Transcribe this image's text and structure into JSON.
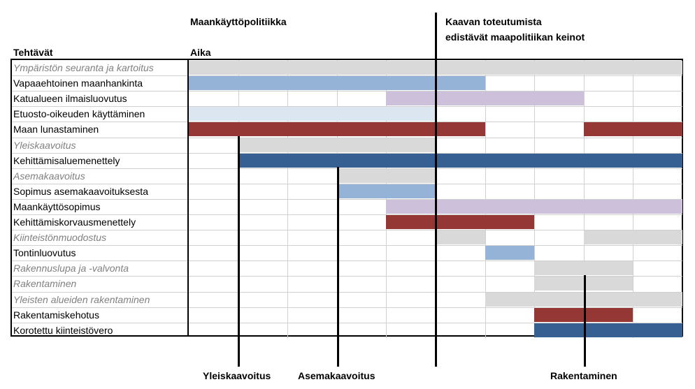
{
  "headers": {
    "policy": "Maankäyttöpolitiikka",
    "tasks": "Tehtävät",
    "time": "Aika",
    "right_line1": "Kaavan toteutumista",
    "right_line2": "edistävät maapolitiikan keinot"
  },
  "bottom_labels": [
    "Yleiskaavoitus",
    "Asemakaavoitus",
    "Rakentaminen"
  ],
  "colors": {
    "grey": "#d9d9d9",
    "light_blue": "#95b3d7",
    "pale_blue": "#dce6f1",
    "lavender": "#ccc0da",
    "dark_red": "#953735",
    "dark_blue": "#376092"
  },
  "rows": [
    {
      "label": "Ympäristön seuranta ja kartoitus",
      "italic": true,
      "bars": [
        {
          "start": 0,
          "end": 10,
          "color": "grey"
        }
      ]
    },
    {
      "label": "Vapaaehtoinen maanhankinta",
      "italic": false,
      "bars": [
        {
          "start": 0,
          "end": 6,
          "color": "light_blue"
        }
      ]
    },
    {
      "label": "Katualueen ilmaisluovutus",
      "italic": false,
      "bars": [
        {
          "start": 4,
          "end": 8,
          "color": "lavender"
        }
      ]
    },
    {
      "label": "Etuosto-oikeuden käyttäminen",
      "italic": false,
      "bars": [
        {
          "start": 0,
          "end": 5,
          "color": "pale_blue"
        }
      ]
    },
    {
      "label": "Maan lunastaminen",
      "italic": false,
      "bars": [
        {
          "start": 0,
          "end": 6,
          "color": "dark_red"
        },
        {
          "start": 8,
          "end": 10,
          "color": "dark_red"
        }
      ]
    },
    {
      "label": "Yleiskaavoitus",
      "italic": true,
      "bars": [
        {
          "start": 1,
          "end": 5,
          "color": "grey"
        }
      ]
    },
    {
      "label": "Kehittämisaluemenettely",
      "italic": false,
      "bars": [
        {
          "start": 1,
          "end": 10,
          "color": "dark_blue"
        }
      ]
    },
    {
      "label": "Asemakaavoitus",
      "italic": true,
      "bars": [
        {
          "start": 3,
          "end": 5,
          "color": "grey"
        }
      ]
    },
    {
      "label": "Sopimus asemakaavoituksesta",
      "italic": false,
      "bars": [
        {
          "start": 3,
          "end": 5,
          "color": "light_blue"
        }
      ]
    },
    {
      "label": "Maankäyttösopimus",
      "italic": false,
      "bars": [
        {
          "start": 4,
          "end": 10,
          "color": "lavender"
        }
      ]
    },
    {
      "label": "Kehittämiskorvausmenettely",
      "italic": false,
      "bars": [
        {
          "start": 4,
          "end": 7,
          "color": "dark_red"
        }
      ]
    },
    {
      "label": "Kiinteistönmuodostus",
      "italic": true,
      "bars": [
        {
          "start": 5,
          "end": 6,
          "color": "grey"
        },
        {
          "start": 8,
          "end": 10,
          "color": "grey"
        }
      ]
    },
    {
      "label": "Tontinluovutus",
      "italic": false,
      "bars": [
        {
          "start": 6,
          "end": 7,
          "color": "light_blue"
        }
      ]
    },
    {
      "label": "Rakennuslupa ja -valvonta",
      "italic": true,
      "bars": [
        {
          "start": 7,
          "end": 9,
          "color": "grey"
        }
      ]
    },
    {
      "label": "Rakentaminen",
      "italic": true,
      "bars": [
        {
          "start": 7,
          "end": 9,
          "color": "grey"
        }
      ]
    },
    {
      "label": "Yleisten alueiden rakentaminen",
      "italic": true,
      "bars": [
        {
          "start": 6,
          "end": 10,
          "color": "grey"
        }
      ]
    },
    {
      "label": "Rakentamiskehotus",
      "italic": false,
      "bars": [
        {
          "start": 7,
          "end": 9,
          "color": "dark_red"
        }
      ]
    },
    {
      "label": "Korotettu kiinteistövero",
      "italic": false,
      "bars": [
        {
          "start": 7,
          "end": 10,
          "color": "dark_blue"
        }
      ]
    }
  ]
}
